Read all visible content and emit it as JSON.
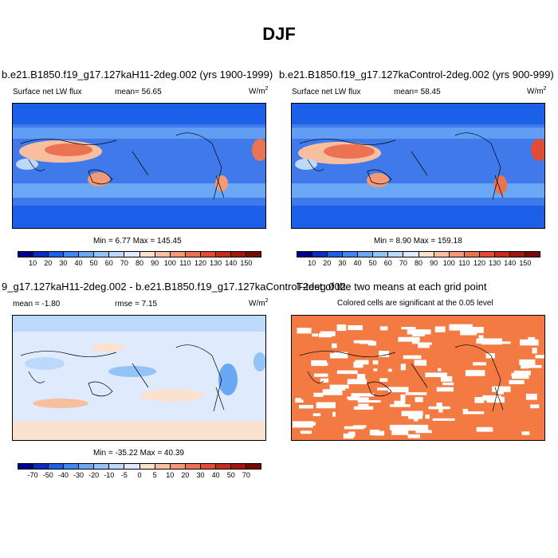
{
  "title": "DJF",
  "panels": [
    {
      "title": "b.e21.B1850.f19_g17.127kaH11-2deg.002 (yrs 1900-1999)",
      "left_label": "Surface net LW flux",
      "center_label": "mean=  56.65",
      "units_base": "W/m",
      "units_exp": "2",
      "stats": "Min =   6.77 Max = 145.45",
      "colorbar": {
        "colors": [
          "#00008f",
          "#0a2fbf",
          "#1c5fe8",
          "#3f88f2",
          "#6aa8f5",
          "#94c3f7",
          "#bcd8fa",
          "#dfeafc",
          "#fbe1cf",
          "#f7bea0",
          "#f29a77",
          "#ec7352",
          "#e24c33",
          "#c62c1c",
          "#a11810",
          "#7a0a06"
        ],
        "labels": [
          "10",
          "20",
          "30",
          "40",
          "50",
          "60",
          "70",
          "80",
          "90",
          "100",
          "110",
          "120",
          "130",
          "140",
          "150"
        ]
      }
    },
    {
      "title": "b.e21.B1850.f19_g17.127kaControl-2deg.002 (yrs 900-999)",
      "left_label": "Surface net LW flux",
      "center_label": "mean=  58.45",
      "units_base": "W/m",
      "units_exp": "2",
      "stats": "Min =   8.90 Max = 159.18",
      "colorbar": {
        "colors": [
          "#00008f",
          "#0a2fbf",
          "#1c5fe8",
          "#3f88f2",
          "#6aa8f5",
          "#94c3f7",
          "#bcd8fa",
          "#dfeafc",
          "#fbe1cf",
          "#f7bea0",
          "#f29a77",
          "#ec7352",
          "#e24c33",
          "#c62c1c",
          "#a11810",
          "#7a0a06"
        ],
        "labels": [
          "10",
          "20",
          "30",
          "40",
          "50",
          "60",
          "70",
          "80",
          "90",
          "100",
          "110",
          "120",
          "130",
          "140",
          "150"
        ]
      }
    },
    {
      "title": "9_g17.127kaH11-2deg.002 - b.e21.B1850.f19_g17.127kaControl-2deg.002",
      "left_label": "mean =  -1.80",
      "center_label": "rmse =   7.15",
      "units_base": "W/m",
      "units_exp": "2",
      "stats": "Min = -35.22 Max =  40.39",
      "colorbar": {
        "colors": [
          "#00008f",
          "#0a2fbf",
          "#1c5fe8",
          "#3f88f2",
          "#6aa8f5",
          "#94c3f7",
          "#bcd8fa",
          "#dfeafc",
          "#fbe1cf",
          "#f7bea0",
          "#f29a77",
          "#ec7352",
          "#e24c33",
          "#c62c1c",
          "#a11810",
          "#7a0a06"
        ],
        "labels": [
          "-70",
          "-50",
          "-40",
          "-30",
          "-20",
          "-10",
          "-5",
          "0",
          "5",
          "10",
          "20",
          "30",
          "40",
          "50",
          "70"
        ]
      }
    },
    {
      "title": "T-test of the two means at each grid point",
      "subtitle": "Colored cells are significant at the 0.05 level"
    }
  ],
  "colors": {
    "map_base": "#3f79ea",
    "diff_base": "#dfe8f8",
    "ttest_fill": "#f47a44"
  },
  "chart_data": [
    {
      "type": "heatmap",
      "title": "b.e21.B1850.f19_g17.127kaH11-2deg.002 (yrs 1900-1999)",
      "variable": "Surface net LW flux",
      "units": "W/m2",
      "mean": 56.65,
      "min": 6.77,
      "max": 145.45,
      "levels": [
        10,
        20,
        30,
        40,
        50,
        60,
        70,
        80,
        90,
        100,
        110,
        120,
        130,
        140,
        150
      ]
    },
    {
      "type": "heatmap",
      "title": "b.e21.B1850.f19_g17.127kaControl-2deg.002 (yrs 900-999)",
      "variable": "Surface net LW flux",
      "units": "W/m2",
      "mean": 58.45,
      "min": 8.9,
      "max": 159.18,
      "levels": [
        10,
        20,
        30,
        40,
        50,
        60,
        70,
        80,
        90,
        100,
        110,
        120,
        130,
        140,
        150
      ]
    },
    {
      "type": "heatmap",
      "title": "9_g17.127kaH11-2deg.002 - b.e21.B1850.f19_g17.127kaControl-2deg.002",
      "units": "W/m2",
      "mean": -1.8,
      "rmse": 7.15,
      "min": -35.22,
      "max": 40.39,
      "levels": [
        -70,
        -50,
        -40,
        -30,
        -20,
        -10,
        -5,
        0,
        5,
        10,
        20,
        30,
        40,
        50,
        70
      ]
    },
    {
      "type": "heatmap",
      "title": "T-test of the two means at each grid point",
      "subtitle": "Colored cells are significant at the 0.05 level"
    }
  ]
}
